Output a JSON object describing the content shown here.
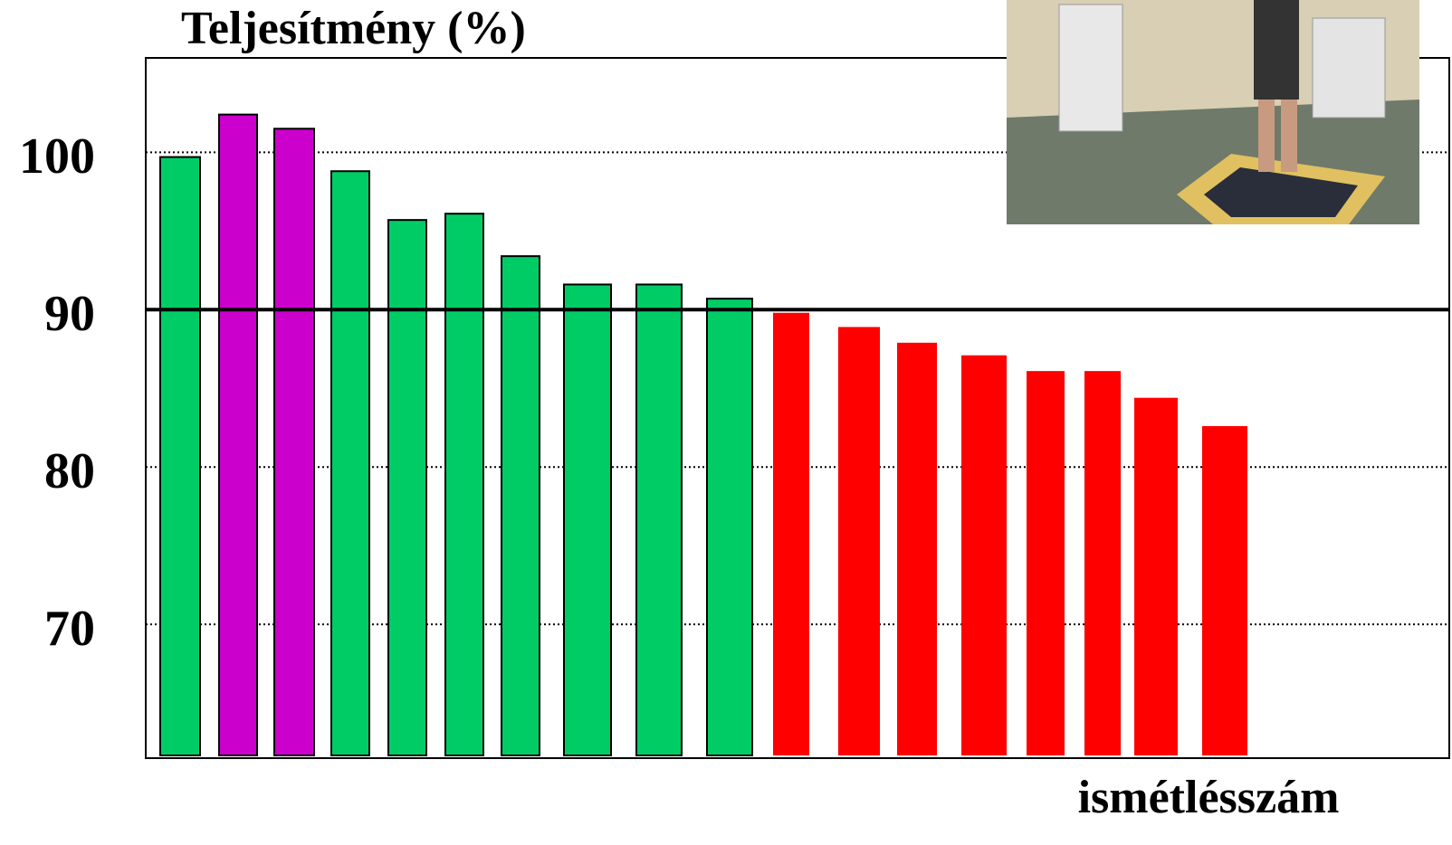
{
  "chart_data": {
    "type": "bar",
    "title": "Teljesítmény (%)",
    "x_label": "ismétlésszám",
    "values": [
      99.7,
      102.4,
      101.5,
      98.8,
      95.7,
      96.1,
      93.4,
      91.6,
      91.6,
      90.7,
      89.8,
      88.9,
      87.9,
      87.1,
      86.1,
      86.1,
      84.4,
      82.6
    ],
    "colors": [
      "#00cc66",
      "#cc00cc",
      "#cc00cc",
      "#00cc66",
      "#00cc66",
      "#00cc66",
      "#00cc66",
      "#00cc66",
      "#00cc66",
      "#00cc66",
      "#ff0000",
      "#ff0000",
      "#ff0000",
      "#ff0000",
      "#ff0000",
      "#ff0000",
      "#ff0000",
      "#ff0000"
    ],
    "ylim": [
      61.5,
      106
    ],
    "yticks": [
      70,
      80,
      90,
      100
    ],
    "grid": true,
    "reference_line": 90
  }
}
